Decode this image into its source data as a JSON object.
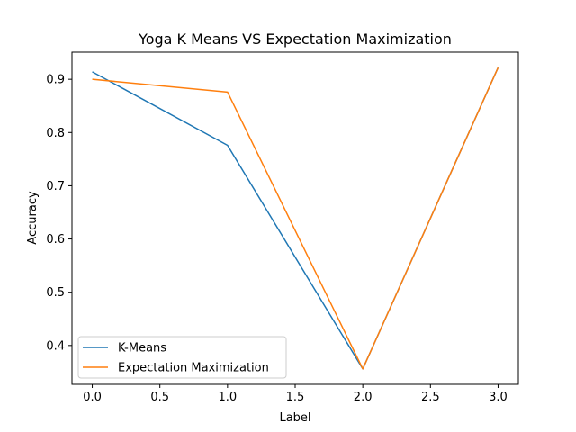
{
  "chart_data": {
    "type": "line",
    "title": "Yoga K Means VS Expectation Maximization",
    "xlabel": "Label",
    "ylabel": "Accuracy",
    "x": [
      0.0,
      1.0,
      2.0,
      3.0
    ],
    "series": [
      {
        "name": "K-Means",
        "values": [
          0.914,
          0.776,
          0.356,
          0.922
        ],
        "color": "#1f77b4"
      },
      {
        "name": "Expectation Maximization",
        "values": [
          0.9,
          0.876,
          0.356,
          0.922
        ],
        "color": "#ff7f0e"
      }
    ],
    "xlim": [
      -0.15,
      3.15
    ],
    "ylim": [
      0.327,
      0.951
    ],
    "xticks": [
      0.0,
      0.5,
      1.0,
      1.5,
      2.0,
      2.5,
      3.0
    ],
    "xtick_labels": [
      "0.0",
      "0.5",
      "1.0",
      "1.5",
      "2.0",
      "2.5",
      "3.0"
    ],
    "yticks": [
      0.4,
      0.5,
      0.6,
      0.7,
      0.8,
      0.9
    ],
    "ytick_labels": [
      "0.4",
      "0.5",
      "0.6",
      "0.7",
      "0.8",
      "0.9"
    ],
    "grid": false,
    "legend_position": "lower-left"
  }
}
